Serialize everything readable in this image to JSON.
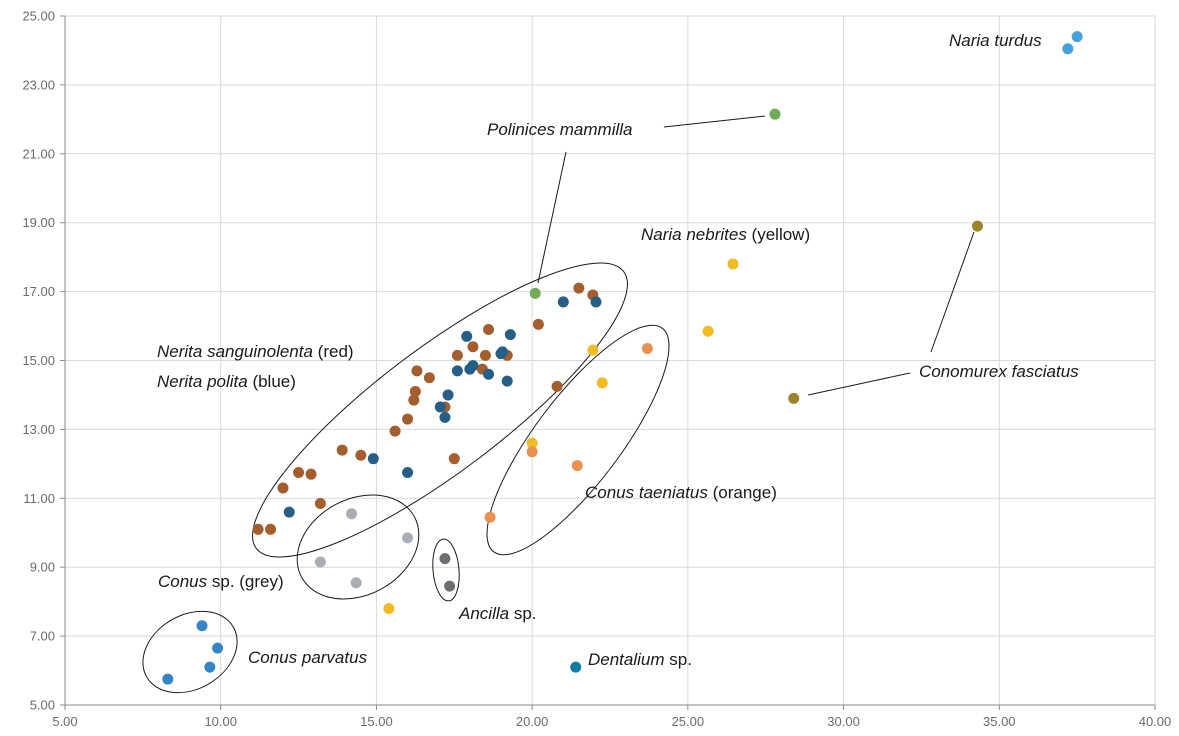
{
  "chart_data": {
    "type": "scatter",
    "title": "",
    "xlabel": "",
    "ylabel": "",
    "xlim": [
      5,
      40
    ],
    "ylim": [
      5,
      25
    ],
    "x_ticks": [
      "5.00",
      "10.00",
      "15.00",
      "20.00",
      "25.00",
      "30.00",
      "35.00",
      "40.00"
    ],
    "y_ticks": [
      "5.00",
      "7.00",
      "9.00",
      "11.00",
      "13.00",
      "15.00",
      "17.00",
      "19.00",
      "21.00",
      "23.00",
      "25.00"
    ],
    "grid": true,
    "legend": "none",
    "colors": {
      "red": "#a45d2c",
      "blue": "#255f88",
      "yellow": "#f3bb22",
      "orange": "#ea9150",
      "grey": "#a9aeb5",
      "dark_grey": "#6b6e72",
      "parvatus": "#3684c8",
      "turdus": "#45a1dc",
      "mammilla": "#72ab58",
      "fasciatus": "#9e8128",
      "dentalium": "#0d7ba4"
    },
    "series": [
      {
        "color_key": "red",
        "points": [
          [
            11.2,
            10.1
          ],
          [
            11.6,
            10.1
          ],
          [
            12.0,
            11.3
          ],
          [
            12.5,
            11.75
          ],
          [
            12.9,
            11.7
          ],
          [
            13.2,
            10.85
          ],
          [
            13.9,
            12.4
          ],
          [
            14.5,
            12.25
          ],
          [
            15.6,
            12.95
          ],
          [
            16.0,
            13.3
          ],
          [
            16.2,
            13.85
          ],
          [
            16.25,
            14.1
          ],
          [
            16.3,
            14.7
          ],
          [
            16.7,
            14.5
          ],
          [
            17.2,
            13.65
          ],
          [
            17.5,
            12.15
          ],
          [
            17.6,
            15.15
          ],
          [
            18.1,
            15.4
          ],
          [
            18.4,
            14.75
          ],
          [
            18.5,
            15.15
          ],
          [
            18.6,
            15.9
          ],
          [
            19.2,
            15.15
          ],
          [
            20.2,
            16.05
          ],
          [
            20.8,
            14.25
          ],
          [
            21.5,
            17.1
          ],
          [
            21.95,
            16.9
          ]
        ]
      },
      {
        "color_key": "blue",
        "points": [
          [
            12.2,
            10.6
          ],
          [
            14.9,
            12.15
          ],
          [
            16.0,
            11.75
          ],
          [
            17.05,
            13.65
          ],
          [
            17.2,
            13.35
          ],
          [
            17.3,
            14.0
          ],
          [
            17.6,
            14.7
          ],
          [
            17.9,
            15.7
          ],
          [
            18.0,
            14.75
          ],
          [
            18.1,
            14.85
          ],
          [
            18.6,
            14.6
          ],
          [
            19.0,
            15.2
          ],
          [
            19.05,
            15.25
          ],
          [
            19.2,
            14.4
          ],
          [
            19.3,
            15.75
          ],
          [
            21.0,
            16.7
          ],
          [
            22.05,
            16.7
          ]
        ]
      },
      {
        "color_key": "yellow",
        "points": [
          [
            15.4,
            7.8
          ],
          [
            20.0,
            12.6
          ],
          [
            21.95,
            15.3
          ],
          [
            22.25,
            14.35
          ],
          [
            25.65,
            15.85
          ],
          [
            26.45,
            17.8
          ]
        ]
      },
      {
        "color_key": "orange",
        "points": [
          [
            18.65,
            10.45
          ],
          [
            20.0,
            12.35
          ],
          [
            21.45,
            11.95
          ],
          [
            23.7,
            15.35
          ]
        ]
      },
      {
        "color_key": "grey",
        "points": [
          [
            13.2,
            9.15
          ],
          [
            14.2,
            10.55
          ],
          [
            14.35,
            8.55
          ],
          [
            16.0,
            9.85
          ]
        ]
      },
      {
        "color_key": "dark_grey",
        "points": [
          [
            17.2,
            9.25
          ],
          [
            17.35,
            8.45
          ]
        ]
      },
      {
        "color_key": "parvatus",
        "points": [
          [
            8.3,
            5.75
          ],
          [
            9.4,
            7.3
          ],
          [
            9.65,
            6.1
          ],
          [
            9.9,
            6.65
          ]
        ]
      },
      {
        "color_key": "turdus",
        "points": [
          [
            37.2,
            24.05
          ],
          [
            37.5,
            24.4
          ]
        ]
      },
      {
        "color_key": "mammilla",
        "points": [
          [
            20.1,
            16.95
          ],
          [
            27.8,
            22.15
          ]
        ]
      },
      {
        "color_key": "fasciatus",
        "points": [
          [
            34.3,
            18.9
          ],
          [
            28.4,
            13.9
          ]
        ]
      },
      {
        "color_key": "dentalium",
        "points": [
          [
            21.4,
            6.1
          ]
        ]
      }
    ],
    "annotations": [
      {
        "id": "naria-turdus",
        "italic": "Naria turdus",
        "normal": ""
      },
      {
        "id": "polinices",
        "italic": "Polinices mammilla",
        "normal": ""
      },
      {
        "id": "nebrites",
        "italic": "Naria nebrites",
        "normal": " (yellow)"
      },
      {
        "id": "sanguinolenta",
        "italic": "Nerita sanguinolenta",
        "normal": " (red)"
      },
      {
        "id": "polita",
        "italic": "Nerita polita",
        "normal": " (blue)"
      },
      {
        "id": "fasciatus",
        "italic": "Conomurex fasciatus",
        "normal": ""
      },
      {
        "id": "taeniatus",
        "italic": "Conus taeniatus",
        "normal": " (orange)"
      },
      {
        "id": "conus-sp",
        "italic": "Conus",
        "normal": " sp. (grey)"
      },
      {
        "id": "ancilla",
        "italic": "Ancilla",
        "normal": " sp."
      },
      {
        "id": "parvatus",
        "italic": "Conus parvatus",
        "normal": ""
      },
      {
        "id": "dentalium",
        "italic": "Dentalium",
        "normal": " sp."
      }
    ]
  }
}
